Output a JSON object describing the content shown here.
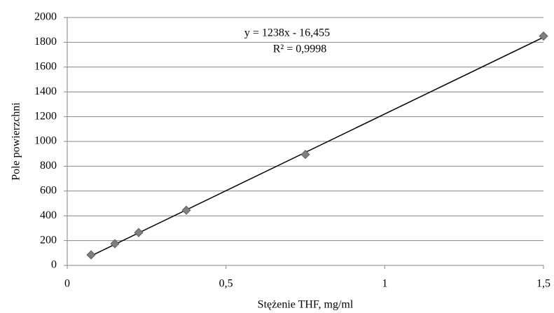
{
  "chart_data": {
    "type": "scatter",
    "x_label": "Stężenie THF, mg/ml",
    "y_label": "Pole powierzchni",
    "series": [
      {
        "color": "#7f7f7f",
        "x": [
          0.075,
          0.15,
          0.225,
          0.375,
          0.75,
          1.5
        ],
        "values": [
          85,
          175,
          265,
          445,
          895,
          1850
        ]
      }
    ],
    "trendline": {
      "equation": "y = 1238x - 16,455",
      "r_squared": "R² = 0,9998",
      "slope": 1238,
      "intercept": -16.455,
      "color": "#000000"
    },
    "xlim": [
      0,
      1.5
    ],
    "xticks": [
      0,
      {
        "value": 0.5,
        "label": "0,5"
      },
      1,
      {
        "value": 1.5,
        "label": "1,5"
      }
    ],
    "ylim": [
      0,
      2000
    ],
    "yticks": [
      0,
      200,
      400,
      600,
      800,
      1000,
      1200,
      1400,
      1600,
      1800,
      2000
    ],
    "grid": true
  }
}
